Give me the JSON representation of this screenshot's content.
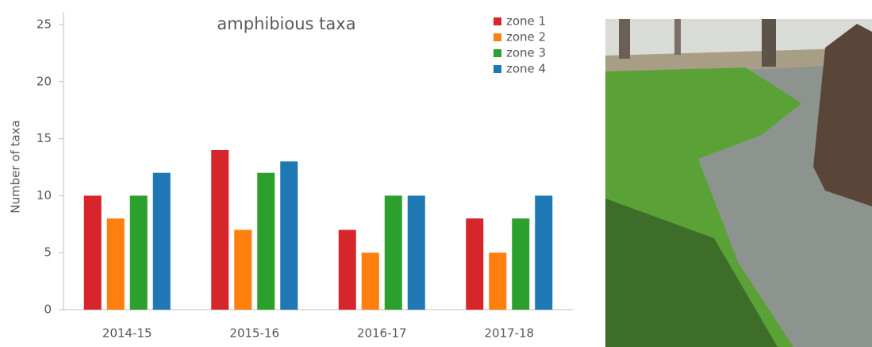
{
  "chart_data": {
    "type": "bar",
    "title": "amphibious taxa",
    "y_label": "Number of taxa",
    "categories": [
      "2014-15",
      "2015-16",
      "2016-17",
      "2017-18"
    ],
    "series": [
      {
        "name": "zone 1",
        "color": "#d7262b",
        "values": [
          10,
          14,
          7,
          8
        ]
      },
      {
        "name": "zone 2",
        "color": "#ff7f0e",
        "values": [
          8,
          7,
          5,
          5
        ]
      },
      {
        "name": "zone 3",
        "color": "#2ca02c",
        "values": [
          10,
          12,
          10,
          8
        ]
      },
      {
        "name": "zone 4",
        "color": "#1f77b4",
        "values": [
          12,
          13,
          10,
          10
        ]
      }
    ],
    "ylim": [
      0,
      25
    ],
    "yticks": [
      0,
      5,
      10,
      15,
      20,
      25
    ],
    "grid": false,
    "legend": "top-right"
  }
}
